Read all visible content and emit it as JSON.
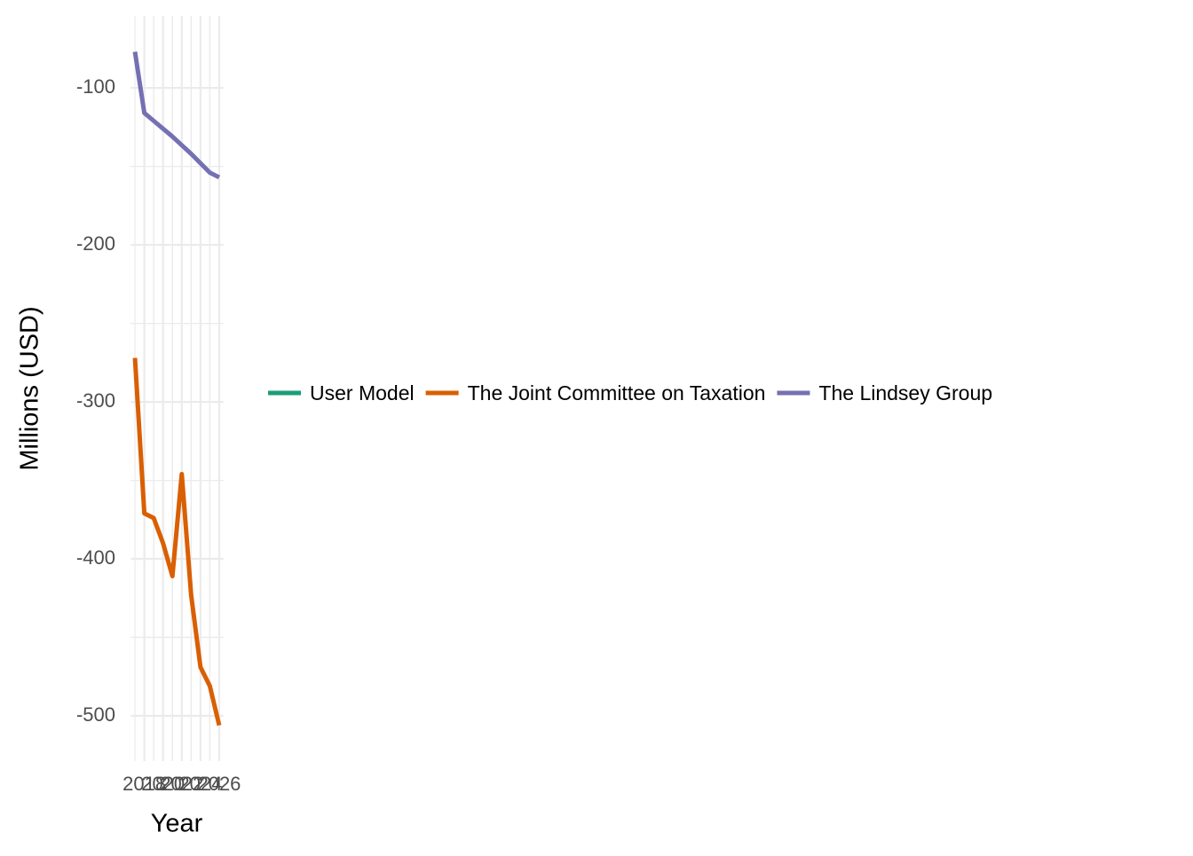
{
  "chart_data": {
    "type": "line",
    "x": [
      2017,
      2018,
      2019,
      2020,
      2021,
      2022,
      2023,
      2024,
      2025,
      2026
    ],
    "series": [
      {
        "name": "User Model",
        "color": "#1b9e77",
        "values": [
          null,
          null,
          null,
          null,
          null,
          null,
          null,
          null,
          null,
          null
        ]
      },
      {
        "name": "The Joint Committee on Taxation",
        "color": "#d95f02",
        "values": [
          -272,
          -371,
          -374,
          -390,
          -411,
          -346,
          -423,
          -469,
          -481,
          -506
        ]
      },
      {
        "name": "The Lindsey Group",
        "color": "#7570b3",
        "values": [
          -77,
          -116,
          -121,
          -126,
          -131,
          -136.5,
          -142,
          -148,
          -154,
          -157
        ]
      }
    ],
    "xlabel": "Year",
    "ylabel": "Millions (USD)",
    "xlim": [
      2016.55,
      2026.45
    ],
    "xticks": [
      2018,
      2020,
      2022,
      2024,
      2026
    ],
    "ylim": [
      -528.8,
      -54.2
    ],
    "yticks": [
      -500,
      -400,
      -300,
      -200,
      -100
    ],
    "grid": true,
    "legend": "right"
  }
}
